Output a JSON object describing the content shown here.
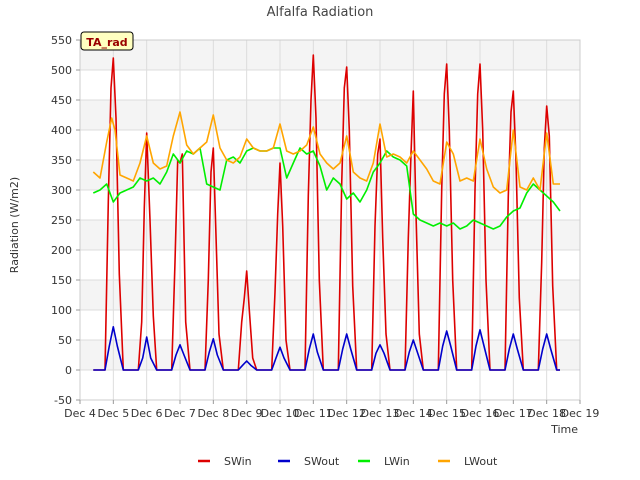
{
  "chart_data": {
    "type": "line",
    "title": "Alfalfa Radiation",
    "xlabel": "Time",
    "ylabel": "Radiation (W/m2)",
    "xlim": [
      4,
      19
    ],
    "ylim": [
      -50,
      550
    ],
    "yticks": [
      -50,
      0,
      50,
      100,
      150,
      200,
      250,
      300,
      350,
      400,
      450,
      500,
      550
    ],
    "xticks": [
      {
        "value": 4,
        "label": "Dec 4"
      },
      {
        "value": 5,
        "label": "Dec 5"
      },
      {
        "value": 6,
        "label": "Dec 6"
      },
      {
        "value": 7,
        "label": "Dec 7"
      },
      {
        "value": 8,
        "label": "Dec 8"
      },
      {
        "value": 9,
        "label": "Dec 9"
      },
      {
        "value": 10,
        "label": "Dec 10"
      },
      {
        "value": 11,
        "label": "Dec 11"
      },
      {
        "value": 12,
        "label": "Dec 12"
      },
      {
        "value": 13,
        "label": "Dec 13"
      },
      {
        "value": 14,
        "label": "Dec 14"
      },
      {
        "value": 15,
        "label": "Dec 15"
      },
      {
        "value": 16,
        "label": "Dec 16"
      },
      {
        "value": 17,
        "label": "Dec 17"
      },
      {
        "value": 18,
        "label": "Dec 18"
      },
      {
        "value": 19,
        "label": "Dec 19"
      }
    ],
    "annotation": "TA_rad",
    "legend_position": "bottom",
    "series": [
      {
        "name": "SWin",
        "color": "#dd0000",
        "x": [
          4.4,
          4.75,
          4.85,
          4.93,
          5.0,
          5.08,
          5.18,
          5.3,
          5.5,
          5.75,
          5.85,
          5.93,
          6.0,
          6.1,
          6.2,
          6.3,
          6.5,
          6.75,
          6.85,
          6.93,
          7.0,
          7.07,
          7.17,
          7.3,
          7.5,
          7.75,
          7.85,
          7.93,
          8.0,
          8.07,
          8.17,
          8.3,
          8.5,
          8.75,
          8.85,
          8.93,
          9.0,
          9.08,
          9.18,
          9.3,
          9.5,
          9.75,
          9.85,
          9.93,
          10.0,
          10.08,
          10.18,
          10.3,
          10.5,
          10.75,
          10.85,
          10.93,
          11.0,
          11.08,
          11.18,
          11.3,
          11.5,
          11.75,
          11.85,
          11.93,
          12.0,
          12.08,
          12.18,
          12.3,
          12.5,
          12.75,
          12.85,
          12.93,
          13.0,
          13.08,
          13.18,
          13.3,
          13.5,
          13.75,
          13.85,
          13.93,
          14.0,
          14.08,
          14.18,
          14.3,
          14.5,
          14.75,
          14.85,
          14.93,
          15.0,
          15.08,
          15.18,
          15.3,
          15.5,
          15.75,
          15.85,
          15.93,
          16.0,
          16.08,
          16.18,
          16.3,
          16.5,
          16.75,
          16.85,
          16.93,
          17.0,
          17.08,
          17.18,
          17.3,
          17.5,
          17.75,
          17.85,
          17.93,
          18.0,
          18.08,
          18.18,
          18.3,
          18.4
        ],
        "values": [
          0,
          0,
          280,
          470,
          520,
          420,
          160,
          0,
          0,
          0,
          80,
          270,
          395,
          250,
          90,
          0,
          0,
          0,
          180,
          350,
          345,
          360,
          80,
          0,
          0,
          0,
          150,
          330,
          370,
          240,
          60,
          0,
          0,
          0,
          80,
          120,
          165,
          100,
          20,
          0,
          0,
          0,
          130,
          260,
          345,
          240,
          50,
          0,
          0,
          0,
          290,
          450,
          525,
          420,
          150,
          0,
          0,
          0,
          310,
          470,
          505,
          400,
          140,
          0,
          0,
          0,
          240,
          360,
          385,
          220,
          60,
          0,
          0,
          0,
          220,
          360,
          465,
          260,
          60,
          0,
          0,
          0,
          300,
          460,
          510,
          400,
          150,
          0,
          0,
          0,
          300,
          460,
          510,
          400,
          150,
          0,
          0,
          0,
          290,
          430,
          465,
          350,
          120,
          0,
          0,
          0,
          180,
          370,
          440,
          390,
          140,
          0,
          0
        ]
      },
      {
        "name": "SWout",
        "color": "#0000cc",
        "x": [
          4.4,
          4.75,
          4.88,
          5.0,
          5.12,
          5.3,
          5.5,
          5.75,
          5.88,
          6.0,
          6.12,
          6.3,
          6.5,
          6.75,
          6.88,
          7.0,
          7.12,
          7.3,
          7.5,
          7.75,
          7.88,
          8.0,
          8.12,
          8.3,
          8.5,
          8.75,
          8.88,
          9.0,
          9.12,
          9.3,
          9.5,
          9.75,
          9.88,
          10.0,
          10.12,
          10.3,
          10.5,
          10.75,
          10.88,
          11.0,
          11.12,
          11.3,
          11.5,
          11.75,
          11.88,
          12.0,
          12.12,
          12.3,
          12.5,
          12.75,
          12.88,
          13.0,
          13.12,
          13.3,
          13.5,
          13.75,
          13.88,
          14.0,
          14.12,
          14.3,
          14.5,
          14.75,
          14.88,
          15.0,
          15.12,
          15.3,
          15.5,
          15.75,
          15.88,
          16.0,
          16.12,
          16.3,
          16.5,
          16.75,
          16.88,
          17.0,
          17.12,
          17.3,
          17.5,
          17.75,
          17.88,
          18.0,
          18.12,
          18.3,
          18.4
        ],
        "values": [
          0,
          0,
          40,
          72,
          40,
          0,
          0,
          0,
          20,
          55,
          20,
          0,
          0,
          0,
          25,
          42,
          25,
          0,
          0,
          0,
          30,
          52,
          25,
          0,
          0,
          0,
          8,
          15,
          8,
          0,
          0,
          0,
          20,
          38,
          20,
          0,
          0,
          0,
          35,
          60,
          30,
          0,
          0,
          0,
          35,
          60,
          35,
          0,
          0,
          0,
          28,
          42,
          28,
          0,
          0,
          0,
          30,
          50,
          30,
          0,
          0,
          0,
          40,
          65,
          40,
          0,
          0,
          0,
          40,
          67,
          40,
          0,
          0,
          0,
          35,
          60,
          35,
          0,
          0,
          0,
          35,
          60,
          35,
          0,
          0
        ]
      },
      {
        "name": "LWin",
        "color": "#00ee00",
        "x": [
          4.4,
          4.6,
          4.8,
          5.0,
          5.2,
          5.4,
          5.6,
          5.8,
          6.0,
          6.2,
          6.4,
          6.6,
          6.8,
          7.0,
          7.2,
          7.4,
          7.6,
          7.8,
          8.0,
          8.2,
          8.4,
          8.6,
          8.8,
          9.0,
          9.2,
          9.4,
          9.6,
          9.8,
          10.0,
          10.2,
          10.4,
          10.6,
          10.8,
          11.0,
          11.2,
          11.4,
          11.6,
          11.8,
          12.0,
          12.2,
          12.4,
          12.6,
          12.8,
          13.0,
          13.2,
          13.4,
          13.6,
          13.8,
          14.0,
          14.2,
          14.4,
          14.6,
          14.8,
          15.0,
          15.2,
          15.4,
          15.6,
          15.8,
          16.0,
          16.2,
          16.4,
          16.6,
          16.8,
          17.0,
          17.2,
          17.4,
          17.6,
          17.8,
          18.0,
          18.2,
          18.4
        ],
        "values": [
          295,
          300,
          310,
          280,
          295,
          300,
          305,
          320,
          315,
          320,
          310,
          330,
          360,
          345,
          365,
          360,
          370,
          310,
          305,
          300,
          350,
          355,
          345,
          365,
          370,
          365,
          365,
          370,
          370,
          320,
          345,
          370,
          360,
          365,
          340,
          300,
          320,
          310,
          285,
          295,
          280,
          300,
          330,
          345,
          365,
          355,
          350,
          340,
          260,
          250,
          245,
          240,
          245,
          240,
          245,
          235,
          240,
          250,
          245,
          240,
          235,
          240,
          255,
          265,
          270,
          295,
          310,
          300,
          290,
          280,
          265
        ]
      },
      {
        "name": "LWout",
        "color": "#ffa500",
        "x": [
          4.4,
          4.6,
          4.8,
          4.95,
          5.05,
          5.2,
          5.4,
          5.6,
          5.8,
          6.0,
          6.2,
          6.4,
          6.6,
          6.8,
          7.0,
          7.2,
          7.4,
          7.6,
          7.8,
          8.0,
          8.2,
          8.4,
          8.6,
          8.8,
          9.0,
          9.2,
          9.4,
          9.6,
          9.8,
          10.0,
          10.2,
          10.4,
          10.6,
          10.8,
          11.0,
          11.2,
          11.4,
          11.6,
          11.8,
          12.0,
          12.2,
          12.4,
          12.6,
          12.8,
          13.0,
          13.2,
          13.4,
          13.6,
          13.8,
          14.0,
          14.2,
          14.4,
          14.6,
          14.8,
          15.0,
          15.2,
          15.4,
          15.6,
          15.8,
          16.0,
          16.2,
          16.4,
          16.6,
          16.8,
          17.0,
          17.2,
          17.4,
          17.6,
          17.8,
          18.0,
          18.2,
          18.4
        ],
        "values": [
          330,
          320,
          380,
          420,
          400,
          325,
          320,
          315,
          345,
          390,
          345,
          335,
          340,
          390,
          430,
          375,
          360,
          370,
          380,
          425,
          370,
          350,
          345,
          355,
          385,
          370,
          365,
          365,
          370,
          410,
          365,
          360,
          365,
          375,
          405,
          360,
          345,
          335,
          345,
          390,
          330,
          320,
          315,
          345,
          410,
          355,
          360,
          355,
          345,
          365,
          350,
          335,
          315,
          310,
          380,
          360,
          315,
          320,
          315,
          385,
          335,
          305,
          295,
          300,
          400,
          305,
          300,
          320,
          300,
          395,
          310,
          310
        ]
      }
    ]
  }
}
